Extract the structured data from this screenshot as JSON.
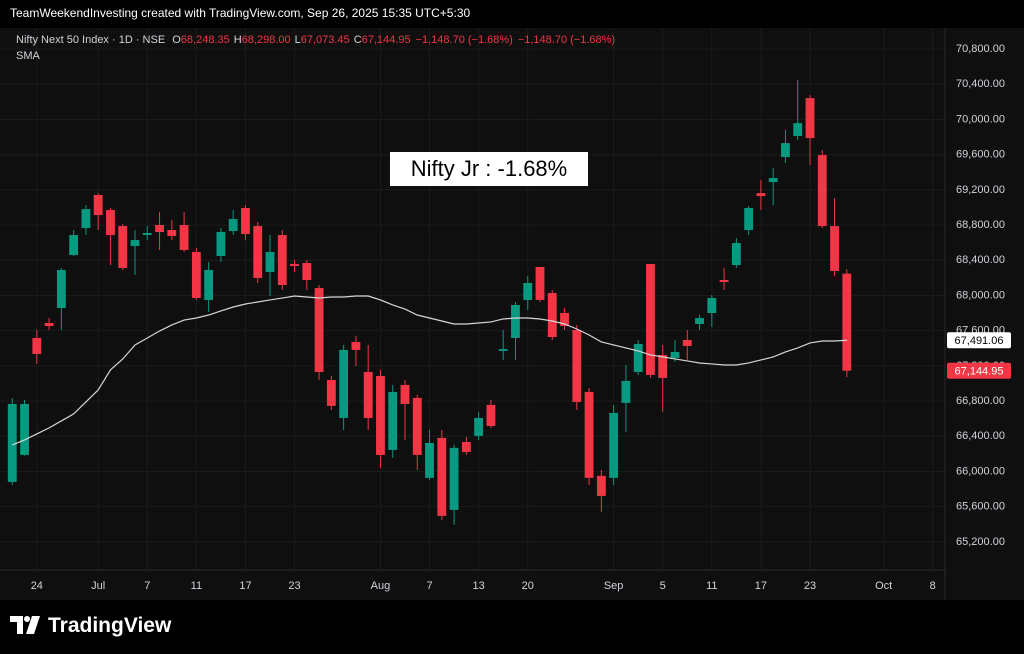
{
  "header": "TeamWeekendInvesting created with TradingView.com, Sep 26, 2025 15:35 UTC+5:30",
  "watermark": "TradingView",
  "chart_data": {
    "type": "candlestick",
    "legend": {
      "symbol": "Nifty Next 50 Index · 1D · NSE",
      "items": [
        {
          "key": "O",
          "text": "68,248.35"
        },
        {
          "key": "H",
          "text": "68,298.00"
        },
        {
          "key": "L",
          "text": "67,073.45"
        },
        {
          "key": "C",
          "text": "67,144.95"
        }
      ],
      "changes": [
        "−1,148.70 (−1.68%)",
        "−1,148.70 (−1.68%)"
      ],
      "indicator": "SMA"
    },
    "annotation": "Nifty Jr : -1.68%",
    "categories": [
      null,
      null,
      "24",
      null,
      null,
      null,
      null,
      "Jul",
      null,
      null,
      null,
      "7",
      null,
      null,
      null,
      "11",
      null,
      null,
      null,
      "17",
      null,
      null,
      null,
      "23",
      null,
      null,
      null,
      null,
      null,
      null,
      "Aug",
      null,
      null,
      null,
      "7",
      null,
      null,
      null,
      "13",
      null,
      null,
      null,
      "20",
      null,
      null,
      null,
      null,
      null,
      null,
      "Sep",
      null,
      null,
      null,
      "5",
      null,
      null,
      null,
      "11",
      null,
      null,
      null,
      "17",
      null,
      null,
      null,
      "23",
      null,
      null,
      null,
      null,
      null,
      "Oct",
      null,
      null,
      null,
      "8"
    ],
    "series": [
      {
        "name": "Nifty Next 50 Index",
        "up_color": "#089981",
        "down_color": "#f23645",
        "open": [
          65881,
          66188,
          67517,
          67687,
          67858,
          68460,
          68767,
          69142,
          68971,
          68789,
          68562,
          68687,
          68801,
          68744,
          68801,
          68494,
          67949,
          68449,
          68733,
          68994,
          68789,
          68267,
          68687,
          68358,
          68369,
          68085,
          67040,
          66608,
          67472,
          67131,
          67085,
          66245,
          66983,
          66836,
          65927,
          66381,
          65563,
          66335,
          66404,
          66756,
          67370,
          67517,
          67949,
          68324,
          68028,
          67801,
          67608,
          66904,
          65950,
          65927,
          66779,
          67131,
          68358,
          67324,
          67290,
          67494,
          67676,
          67801,
          68176,
          68346,
          68744,
          69164,
          69289,
          69573,
          69812,
          70243,
          69596,
          68789,
          68248.35,
          null,
          null,
          null,
          null,
          null,
          null,
          null
        ],
        "high": [
          66836,
          66813,
          67608,
          67744,
          68312,
          68744,
          69028,
          69164,
          68994,
          68812,
          68744,
          68789,
          68948,
          68857,
          68948,
          68540,
          68380,
          68767,
          68971,
          69028,
          68835,
          68687,
          68744,
          68403,
          68403,
          68119,
          67085,
          67438,
          67540,
          67438,
          67154,
          66983,
          67040,
          66870,
          66472,
          66472,
          66302,
          66392,
          66676,
          66813,
          67608,
          67926,
          68221,
          68324,
          68062,
          67858,
          67665,
          66949,
          66017,
          66756,
          67210,
          67494,
          68358,
          67438,
          67494,
          67608,
          67778,
          68005,
          68312,
          68653,
          69017,
          69312,
          69448,
          69880,
          70448,
          70277,
          69653,
          69108,
          68298,
          null,
          null,
          null,
          null,
          null,
          null,
          null
        ],
        "low": [
          65847,
          66180,
          67222,
          67608,
          67608,
          68449,
          68687,
          68744,
          68346,
          68290,
          68233,
          68630,
          68517,
          68630,
          68494,
          67949,
          67812,
          68380,
          68687,
          68630,
          68142,
          67994,
          68062,
          68267,
          68062,
          67040,
          66699,
          66472,
          67199,
          66472,
          66040,
          66154,
          66358,
          66017,
          65904,
          65450,
          65393,
          66188,
          66358,
          66494,
          67267,
          67267,
          67835,
          67926,
          67494,
          67608,
          66699,
          65847,
          65540,
          65847,
          66449,
          67097,
          67063,
          66676,
          67244,
          67267,
          67608,
          67642,
          68062,
          68312,
          68687,
          68971,
          69028,
          69505,
          69766,
          69482,
          68767,
          68221,
          67073.45,
          null,
          null,
          null,
          null,
          null,
          null,
          null
        ],
        "close": [
          66767,
          66767,
          67335,
          67653,
          68290,
          68687,
          68982,
          68914,
          68687,
          68312,
          68630,
          68710,
          68721,
          68676,
          68517,
          67971,
          68290,
          68721,
          68869,
          68698,
          68199,
          68494,
          68119,
          68335,
          68176,
          67131,
          66745,
          67381,
          67381,
          66608,
          66188,
          66904,
          66767,
          66188,
          66324,
          65495,
          66268,
          66222,
          66608,
          66517,
          67392,
          67892,
          68142,
          67949,
          67528,
          67653,
          66790,
          65927,
          65722,
          66665,
          67029,
          67449,
          67097,
          67063,
          67358,
          67426,
          67744,
          67971,
          68153,
          68596,
          68994,
          69130,
          69335,
          69732,
          69959,
          69789,
          68789,
          68278,
          67144.95,
          null,
          null,
          null,
          null,
          null,
          null,
          null
        ]
      },
      {
        "name": "SMA",
        "color": "#d6d6d6",
        "values": [
          66301,
          66358,
          66426,
          66495,
          66574,
          66654,
          66790,
          66926,
          67154,
          67278,
          67437,
          67517,
          67596,
          67665,
          67721,
          67744,
          67778,
          67824,
          67869,
          67903,
          67926,
          67949,
          67971,
          67994,
          67983,
          67971,
          67983,
          67983,
          67994,
          67994,
          67949,
          67892,
          67846,
          67778,
          67744,
          67710,
          67676,
          67676,
          67687,
          67699,
          67733,
          67744,
          67744,
          67733,
          67710,
          67676,
          67619,
          67551,
          67472,
          67438,
          67404,
          67370,
          67324,
          67302,
          67279,
          67256,
          67233,
          67222,
          67210,
          67210,
          67233,
          67267,
          67302,
          67358,
          67404,
          67461,
          67483,
          67483,
          67491.06,
          null,
          null,
          null,
          null,
          null,
          null,
          null
        ]
      }
    ],
    "price_labels": [
      {
        "value": 67491.06,
        "label": "67,491.06",
        "color": "#ffffff",
        "text_color": "#000000"
      },
      {
        "value": 67144.95,
        "label": "67,144.95",
        "color": "#f23645",
        "text_color": "#ffffff"
      }
    ],
    "ylim": [
      64880,
      71040
    ],
    "yticks": [
      {
        "value": 65200,
        "label": "65,200.00"
      },
      {
        "value": 65600,
        "label": "65,600.00"
      },
      {
        "value": 66000,
        "label": "66,000.00"
      },
      {
        "value": 66400,
        "label": "66,400.00"
      },
      {
        "value": 66800,
        "label": "66,800.00"
      },
      {
        "value": 67200,
        "label": "67,200.00"
      },
      {
        "value": 67600,
        "label": "67,600.00"
      },
      {
        "value": 68000,
        "label": "68,000.00"
      },
      {
        "value": 68400,
        "label": "68,400.00"
      },
      {
        "value": 68800,
        "label": "68,800.00"
      },
      {
        "value": 69200,
        "label": "69,200.00"
      },
      {
        "value": 69600,
        "label": "69,600.00"
      },
      {
        "value": 70000,
        "label": "70,000.00"
      },
      {
        "value": 70400,
        "label": "70,400.00"
      },
      {
        "value": 70800,
        "label": "70,800.00"
      }
    ],
    "grid": true
  }
}
